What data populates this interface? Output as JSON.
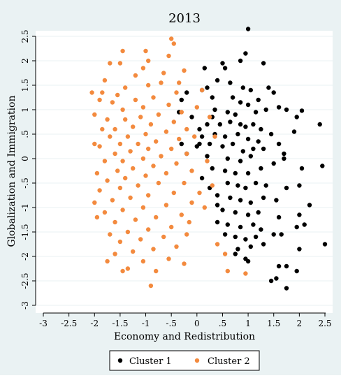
{
  "chart_data": {
    "type": "scatter",
    "title": "2013",
    "xlabel": "Economy and Redistribution",
    "ylabel": "Globalization and Immigration",
    "xlim": [
      -3,
      2.5
    ],
    "ylim": [
      -3,
      2.5
    ],
    "x_ticks": [
      -3,
      -2.5,
      -2,
      -1.5,
      -1,
      -0.5,
      0,
      0.5,
      1,
      1.5,
      2,
      2.5
    ],
    "x_tick_labels": [
      "-3",
      "-2.5",
      "-2",
      "-1.5",
      "-1",
      "-.5",
      "0",
      ".5",
      "1",
      "1.5",
      "2",
      "2.5"
    ],
    "y_ticks": [
      -3,
      -2.5,
      -2,
      -1.5,
      -1,
      -0.5,
      0,
      0.5,
      1,
      1.5,
      2,
      2.5
    ],
    "y_tick_labels": [
      "-3",
      "-2.5",
      "-2",
      "-1.5",
      "-1",
      "-.5",
      "0",
      ".5",
      "1",
      "1.5",
      "2",
      "2.5"
    ],
    "grid": true,
    "legend": "bottom",
    "series": [
      {
        "name": "Cluster 1",
        "color": "#000000",
        "points": [
          [
            1.0,
            2.65
          ],
          [
            0.95,
            2.15
          ],
          [
            0.85,
            2.0
          ],
          [
            1.3,
            1.95
          ],
          [
            0.5,
            1.95
          ],
          [
            0.55,
            1.85
          ],
          [
            0.15,
            1.85
          ],
          [
            0.4,
            1.6
          ],
          [
            0.2,
            1.45
          ],
          [
            0.1,
            1.4
          ],
          [
            0.9,
            1.45
          ],
          [
            1.05,
            1.4
          ],
          [
            1.4,
            1.45
          ],
          [
            1.5,
            1.35
          ],
          [
            0.7,
            1.25
          ],
          [
            0.85,
            1.15
          ],
          [
            1.0,
            1.1
          ],
          [
            1.2,
            1.2
          ],
          [
            0.3,
            1.25
          ],
          [
            -0.2,
            1.35
          ],
          [
            -0.3,
            1.2
          ],
          [
            0.35,
            1.0
          ],
          [
            0.6,
            0.95
          ],
          [
            0.75,
            0.9
          ],
          [
            1.15,
            0.95
          ],
          [
            1.35,
            1.0
          ],
          [
            1.6,
            1.05
          ],
          [
            1.75,
            1.0
          ],
          [
            2.05,
            0.98
          ],
          [
            1.95,
            0.85
          ],
          [
            0.05,
            0.6
          ],
          [
            0.2,
            0.7
          ],
          [
            0.45,
            0.7
          ],
          [
            0.65,
            0.75
          ],
          [
            0.85,
            0.7
          ],
          [
            0.95,
            0.65
          ],
          [
            1.1,
            0.7
          ],
          [
            1.25,
            0.6
          ],
          [
            1.45,
            0.5
          ],
          [
            1.9,
            0.55
          ],
          [
            2.4,
            0.7
          ],
          [
            0.1,
            0.45
          ],
          [
            0.35,
            0.5
          ],
          [
            0.55,
            0.45
          ],
          [
            0.8,
            0.5
          ],
          [
            1.0,
            0.4
          ],
          [
            1.2,
            0.35
          ],
          [
            1.6,
            0.3
          ],
          [
            -0.3,
            0.3
          ],
          [
            0.0,
            0.25
          ],
          [
            0.25,
            0.3
          ],
          [
            0.5,
            0.25
          ],
          [
            0.7,
            0.3
          ],
          [
            0.9,
            0.15
          ],
          [
            1.1,
            0.2
          ],
          [
            1.3,
            0.2
          ],
          [
            1.7,
            0.1
          ],
          [
            -0.2,
            0.1
          ],
          [
            0.2,
            0.05
          ],
          [
            0.6,
            0.0
          ],
          [
            0.85,
            -0.05
          ],
          [
            1.05,
            0.05
          ],
          [
            1.5,
            -0.1
          ],
          [
            1.7,
            0.0
          ],
          [
            0.3,
            -0.2
          ],
          [
            0.55,
            -0.25
          ],
          [
            0.75,
            -0.3
          ],
          [
            1.0,
            -0.3
          ],
          [
            1.25,
            -0.2
          ],
          [
            2.05,
            -0.2
          ],
          [
            2.45,
            -0.15
          ],
          [
            0.6,
            -0.5
          ],
          [
            0.8,
            -0.55
          ],
          [
            0.95,
            -0.6
          ],
          [
            1.15,
            -0.5
          ],
          [
            1.35,
            -0.55
          ],
          [
            1.75,
            -0.6
          ],
          [
            2.0,
            -0.55
          ],
          [
            0.4,
            -0.75
          ],
          [
            0.65,
            -0.8
          ],
          [
            0.85,
            -0.85
          ],
          [
            1.05,
            -0.9
          ],
          [
            1.3,
            -0.8
          ],
          [
            1.55,
            -0.85
          ],
          [
            0.5,
            -1.05
          ],
          [
            0.75,
            -1.1
          ],
          [
            1.0,
            -1.15
          ],
          [
            1.2,
            -1.1
          ],
          [
            1.6,
            -1.2
          ],
          [
            2.2,
            -0.95
          ],
          [
            2.0,
            -1.15
          ],
          [
            0.4,
            -1.3
          ],
          [
            0.6,
            -1.35
          ],
          [
            0.85,
            -1.4
          ],
          [
            1.1,
            -1.35
          ],
          [
            1.25,
            -1.45
          ],
          [
            1.95,
            -1.4
          ],
          [
            2.1,
            -1.35
          ],
          [
            0.55,
            -1.55
          ],
          [
            0.75,
            -1.6
          ],
          [
            0.95,
            -1.65
          ],
          [
            1.15,
            -1.6
          ],
          [
            1.5,
            -1.55
          ],
          [
            1.65,
            -1.55
          ],
          [
            2.5,
            -1.75
          ],
          [
            0.8,
            -1.85
          ],
          [
            1.05,
            -1.8
          ],
          [
            1.3,
            -1.75
          ],
          [
            2.0,
            -1.85
          ],
          [
            0.75,
            -1.95
          ],
          [
            0.95,
            -2.05
          ],
          [
            1.0,
            -2.1
          ],
          [
            1.6,
            -2.2
          ],
          [
            1.75,
            -2.2
          ],
          [
            1.45,
            -2.5
          ],
          [
            1.55,
            -2.45
          ],
          [
            1.75,
            -2.65
          ],
          [
            1.95,
            -2.3
          ],
          [
            0.3,
            0.85
          ],
          [
            -0.1,
            0.85
          ],
          [
            0.1,
            -0.4
          ],
          [
            0.4,
            -0.95
          ],
          [
            0.25,
            -0.6
          ],
          [
            0.65,
            1.55
          ],
          [
            -0.35,
            0.95
          ],
          [
            0.05,
            0.3
          ]
        ]
      },
      {
        "name": "Cluster 2",
        "color": "#f38a3e",
        "points": [
          [
            -0.5,
            2.45
          ],
          [
            -0.45,
            2.35
          ],
          [
            -1.45,
            2.2
          ],
          [
            -1.0,
            2.2
          ],
          [
            -0.55,
            2.1
          ],
          [
            -0.95,
            2.0
          ],
          [
            -1.5,
            1.95
          ],
          [
            -1.7,
            1.95
          ],
          [
            -1.05,
            1.85
          ],
          [
            -0.25,
            1.8
          ],
          [
            -0.65,
            1.75
          ],
          [
            -1.2,
            1.7
          ],
          [
            -1.8,
            1.6
          ],
          [
            -0.7,
            1.55
          ],
          [
            -0.95,
            1.5
          ],
          [
            -1.4,
            1.45
          ],
          [
            -2.05,
            1.35
          ],
          [
            -1.85,
            1.35
          ],
          [
            -1.55,
            1.3
          ],
          [
            -0.4,
            1.35
          ],
          [
            -0.85,
            1.25
          ],
          [
            -1.2,
            1.2
          ],
          [
            -1.65,
            1.15
          ],
          [
            -1.9,
            1.2
          ],
          [
            -0.55,
            1.1
          ],
          [
            -1.05,
            1.05
          ],
          [
            -1.45,
            1.0
          ],
          [
            -2.0,
            0.9
          ],
          [
            -1.75,
            0.8
          ],
          [
            -0.3,
            0.95
          ],
          [
            -0.75,
            0.9
          ],
          [
            -1.1,
            0.85
          ],
          [
            -1.4,
            0.8
          ],
          [
            -0.45,
            0.75
          ],
          [
            -0.9,
            0.7
          ],
          [
            -1.25,
            0.65
          ],
          [
            -1.6,
            0.6
          ],
          [
            -1.85,
            0.6
          ],
          [
            -0.2,
            0.6
          ],
          [
            -0.6,
            0.55
          ],
          [
            -1.0,
            0.5
          ],
          [
            -1.35,
            0.45
          ],
          [
            -1.7,
            0.45
          ],
          [
            -0.35,
            0.4
          ],
          [
            -0.8,
            0.35
          ],
          [
            -1.15,
            0.3
          ],
          [
            -1.5,
            0.3
          ],
          [
            -2.0,
            0.3
          ],
          [
            -1.9,
            0.25
          ],
          [
            -0.5,
            0.2
          ],
          [
            -0.95,
            0.2
          ],
          [
            -1.3,
            0.15
          ],
          [
            -1.6,
            0.1
          ],
          [
            -0.2,
            0.1
          ],
          [
            -0.7,
            0.05
          ],
          [
            -1.05,
            0.0
          ],
          [
            -1.45,
            -0.05
          ],
          [
            -1.8,
            -0.05
          ],
          [
            -0.4,
            -0.1
          ],
          [
            -0.85,
            -0.15
          ],
          [
            -1.25,
            -0.2
          ],
          [
            -1.55,
            -0.25
          ],
          [
            -1.95,
            -0.3
          ],
          [
            -0.1,
            -0.25
          ],
          [
            -0.6,
            -0.3
          ],
          [
            -1.0,
            -0.35
          ],
          [
            -1.4,
            -0.4
          ],
          [
            -1.75,
            -0.45
          ],
          [
            -0.25,
            -0.5
          ],
          [
            -0.75,
            -0.5
          ],
          [
            -1.15,
            -0.55
          ],
          [
            -1.5,
            -0.6
          ],
          [
            -1.9,
            -0.65
          ],
          [
            -0.45,
            -0.7
          ],
          [
            -0.95,
            -0.75
          ],
          [
            -1.3,
            -0.8
          ],
          [
            -1.65,
            -0.85
          ],
          [
            -2.0,
            -0.9
          ],
          [
            -0.1,
            -0.9
          ],
          [
            -0.6,
            -0.95
          ],
          [
            -1.05,
            -1.0
          ],
          [
            -1.45,
            -1.05
          ],
          [
            -1.8,
            -1.1
          ],
          [
            -0.3,
            -1.15
          ],
          [
            -0.8,
            -1.2
          ],
          [
            -1.2,
            -1.25
          ],
          [
            -1.6,
            -1.3
          ],
          [
            -1.95,
            -1.2
          ],
          [
            -0.5,
            -1.4
          ],
          [
            -0.95,
            -1.45
          ],
          [
            -1.35,
            -1.5
          ],
          [
            -1.7,
            -1.55
          ],
          [
            -0.2,
            -1.55
          ],
          [
            -0.65,
            -1.6
          ],
          [
            -1.1,
            -1.65
          ],
          [
            -1.5,
            -1.7
          ],
          [
            -0.4,
            -1.8
          ],
          [
            -0.85,
            -1.85
          ],
          [
            -1.25,
            -1.9
          ],
          [
            -1.6,
            -1.95
          ],
          [
            -0.55,
            -2.05
          ],
          [
            -1.05,
            -2.1
          ],
          [
            -1.75,
            -2.1
          ],
          [
            -0.25,
            -2.15
          ],
          [
            -1.45,
            -2.3
          ],
          [
            -1.35,
            -2.25
          ],
          [
            -0.8,
            -2.3
          ],
          [
            -0.9,
            -2.6
          ],
          [
            0.1,
            1.4
          ],
          [
            0.25,
            0.85
          ],
          [
            0.35,
            0.45
          ],
          [
            0.2,
            -0.05
          ],
          [
            0.3,
            -0.55
          ],
          [
            0.15,
            -1.0
          ],
          [
            0.4,
            -1.75
          ],
          [
            0.55,
            -1.95
          ],
          [
            0.6,
            -2.3
          ],
          [
            0.95,
            -2.35
          ],
          [
            -0.05,
            0.45
          ],
          [
            0.05,
            -0.7
          ],
          [
            -0.15,
            -1.3
          ],
          [
            -0.35,
            1.55
          ],
          [
            0.0,
            1.05
          ]
        ]
      }
    ]
  }
}
